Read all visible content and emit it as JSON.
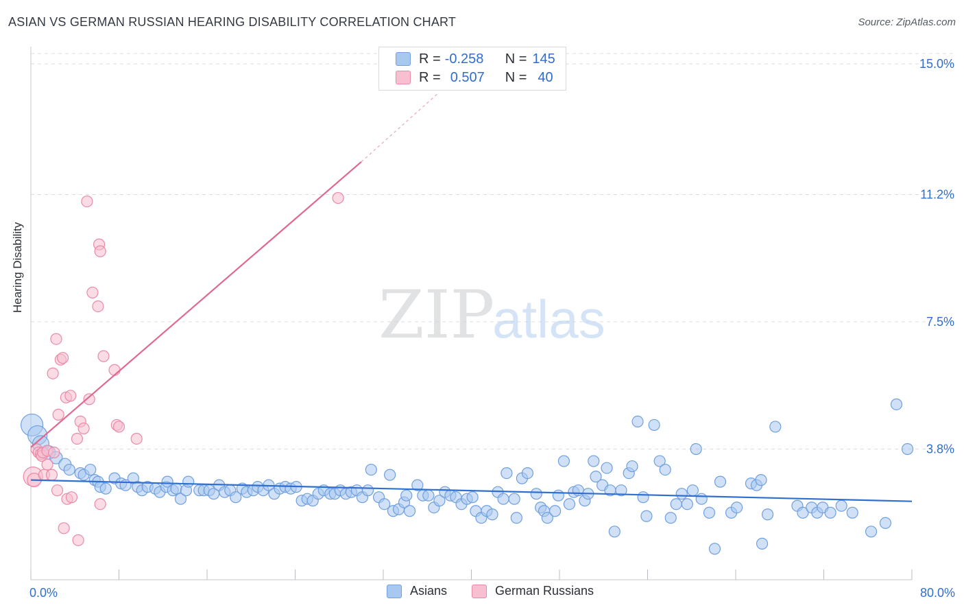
{
  "title": "ASIAN VS GERMAN RUSSIAN HEARING DISABILITY CORRELATION CHART",
  "source": "Source: ZipAtlas.com",
  "watermark": {
    "zip": "ZIP",
    "atlas": "atlas"
  },
  "legend": {
    "r_label": "R =",
    "n_label": "N =",
    "series": [
      {
        "name": "Asians",
        "r": "-0.258",
        "n": "145",
        "fill": "#a9c8f0",
        "stroke": "#6f9fde"
      },
      {
        "name": "German Russians",
        "r": "0.507",
        "n": "40",
        "fill": "#f7bfd0",
        "stroke": "#e98aa8"
      }
    ]
  },
  "chart_data": {
    "type": "scatter",
    "title": "ASIAN VS GERMAN RUSSIAN HEARING DISABILITY CORRELATION CHART",
    "xlabel": "",
    "ylabel": "Hearing Disability",
    "xlim": [
      0,
      80
    ],
    "ylim": [
      0,
      15.5
    ],
    "x_tick_labels": [
      "0.0%",
      "80.0%"
    ],
    "y_ticks": [
      3.8,
      7.5,
      11.2,
      15.0
    ],
    "y_tick_labels": [
      "3.8%",
      "7.5%",
      "11.2%",
      "15.0%"
    ],
    "grid": "horizontal dashed",
    "colors": {
      "asians_line": "#2e6fd1",
      "german_russians_line": "#e0688f",
      "tick_text": "#2f6ecf"
    },
    "series": [
      {
        "name": "Asians",
        "trend": {
          "x": [
            0,
            80
          ],
          "y": [
            2.9,
            2.28
          ]
        },
        "points": [
          [
            0.1,
            4.5,
            16
          ],
          [
            0.6,
            4.2,
            14
          ],
          [
            0.9,
            3.95,
            12
          ],
          [
            1.6,
            3.7,
            10
          ],
          [
            2.3,
            3.55,
            9
          ],
          [
            3.1,
            3.35,
            9
          ],
          [
            3.5,
            3.2,
            8
          ],
          [
            4.5,
            3.1,
            8
          ],
          [
            4.8,
            3.05,
            8
          ],
          [
            5.4,
            3.2,
            8
          ],
          [
            5.8,
            2.9,
            8
          ],
          [
            6.1,
            2.85,
            8
          ],
          [
            6.3,
            2.7,
            8
          ],
          [
            6.8,
            2.65,
            8
          ],
          [
            7.6,
            2.95,
            8
          ],
          [
            8.2,
            2.8,
            8
          ],
          [
            8.6,
            2.75,
            8
          ],
          [
            9.3,
            2.95,
            8
          ],
          [
            9.7,
            2.7,
            8
          ],
          [
            10.1,
            2.6,
            8
          ],
          [
            10.6,
            2.7,
            8
          ],
          [
            11.3,
            2.65,
            8
          ],
          [
            11.7,
            2.55,
            8
          ],
          [
            12.3,
            2.7,
            8
          ],
          [
            12.4,
            2.85,
            8
          ],
          [
            12.9,
            2.6,
            8
          ],
          [
            13.2,
            2.65,
            8
          ],
          [
            13.6,
            2.35,
            8
          ],
          [
            14.1,
            2.6,
            8
          ],
          [
            14.3,
            2.85,
            8
          ],
          [
            15.3,
            2.6,
            8
          ],
          [
            15.7,
            2.6,
            8
          ],
          [
            16.2,
            2.6,
            8
          ],
          [
            16.6,
            2.5,
            8
          ],
          [
            17.1,
            2.75,
            8
          ],
          [
            17.6,
            2.55,
            8
          ],
          [
            18.1,
            2.6,
            8
          ],
          [
            18.6,
            2.4,
            8
          ],
          [
            19.2,
            2.65,
            8
          ],
          [
            19.6,
            2.55,
            8
          ],
          [
            20.2,
            2.6,
            8
          ],
          [
            20.6,
            2.7,
            8
          ],
          [
            21.1,
            2.6,
            8
          ],
          [
            21.6,
            2.75,
            8
          ],
          [
            22.1,
            2.5,
            8
          ],
          [
            22.6,
            2.65,
            8
          ],
          [
            23.1,
            2.7,
            8
          ],
          [
            23.6,
            2.65,
            8
          ],
          [
            24.1,
            2.7,
            8
          ],
          [
            24.6,
            2.3,
            8
          ],
          [
            25.1,
            2.35,
            8
          ],
          [
            25.6,
            2.3,
            8
          ],
          [
            26.1,
            2.5,
            8
          ],
          [
            26.6,
            2.6,
            8
          ],
          [
            27.2,
            2.5,
            8
          ],
          [
            27.6,
            2.5,
            8
          ],
          [
            28.1,
            2.6,
            8
          ],
          [
            28.6,
            2.5,
            8
          ],
          [
            29.1,
            2.55,
            8
          ],
          [
            29.6,
            2.6,
            8
          ],
          [
            30.1,
            2.4,
            8
          ],
          [
            30.6,
            2.6,
            8
          ],
          [
            30.9,
            3.2,
            8
          ],
          [
            31.6,
            2.4,
            8
          ],
          [
            32.1,
            2.2,
            8
          ],
          [
            32.6,
            3.05,
            8
          ],
          [
            32.9,
            2.0,
            8
          ],
          [
            33.4,
            2.05,
            8
          ],
          [
            33.9,
            2.25,
            8
          ],
          [
            34.1,
            2.45,
            8
          ],
          [
            34.4,
            2.0,
            8
          ],
          [
            35.1,
            2.75,
            8
          ],
          [
            35.6,
            2.45,
            8
          ],
          [
            36.1,
            2.45,
            8
          ],
          [
            36.6,
            2.1,
            8
          ],
          [
            37.1,
            2.3,
            8
          ],
          [
            37.6,
            2.55,
            8
          ],
          [
            38.1,
            2.45,
            8
          ],
          [
            38.6,
            2.4,
            8
          ],
          [
            39.1,
            2.2,
            8
          ],
          [
            39.6,
            2.35,
            8
          ],
          [
            40.1,
            2.4,
            8
          ],
          [
            40.4,
            2.0,
            8
          ],
          [
            40.9,
            1.8,
            8
          ],
          [
            41.4,
            2.0,
            8
          ],
          [
            41.9,
            1.9,
            8
          ],
          [
            42.4,
            2.55,
            8
          ],
          [
            42.9,
            2.35,
            8
          ],
          [
            43.2,
            3.1,
            8
          ],
          [
            43.9,
            2.35,
            8
          ],
          [
            44.1,
            1.8,
            8
          ],
          [
            44.6,
            2.95,
            8
          ],
          [
            45.1,
            3.1,
            8
          ],
          [
            45.9,
            2.5,
            8
          ],
          [
            46.3,
            2.1,
            8
          ],
          [
            46.6,
            2.0,
            8
          ],
          [
            46.9,
            1.8,
            8
          ],
          [
            47.6,
            2.0,
            8
          ],
          [
            47.9,
            2.45,
            8
          ],
          [
            48.4,
            3.45,
            8
          ],
          [
            48.9,
            2.2,
            8
          ],
          [
            49.3,
            2.55,
            8
          ],
          [
            49.7,
            2.6,
            8
          ],
          [
            50.3,
            2.3,
            8
          ],
          [
            50.6,
            2.5,
            8
          ],
          [
            51.1,
            3.45,
            8
          ],
          [
            51.3,
            3.0,
            8
          ],
          [
            51.9,
            2.75,
            8
          ],
          [
            52.3,
            3.25,
            8
          ],
          [
            52.6,
            2.6,
            8
          ],
          [
            53.0,
            1.4,
            8
          ],
          [
            53.6,
            2.6,
            8
          ],
          [
            54.3,
            3.1,
            8
          ],
          [
            54.6,
            3.3,
            8
          ],
          [
            55.1,
            4.6,
            8
          ],
          [
            55.6,
            2.4,
            8
          ],
          [
            55.9,
            1.85,
            8
          ],
          [
            56.6,
            4.5,
            8
          ],
          [
            57.1,
            3.45,
            8
          ],
          [
            57.6,
            3.2,
            8
          ],
          [
            58.1,
            1.8,
            8
          ],
          [
            58.6,
            2.2,
            8
          ],
          [
            59.1,
            2.5,
            8
          ],
          [
            59.6,
            2.2,
            8
          ],
          [
            60.1,
            2.6,
            8
          ],
          [
            60.4,
            3.8,
            8
          ],
          [
            60.9,
            2.35,
            8
          ],
          [
            61.6,
            1.95,
            8
          ],
          [
            62.1,
            0.9,
            8
          ],
          [
            62.6,
            2.85,
            8
          ],
          [
            63.6,
            1.95,
            8
          ],
          [
            64.1,
            2.1,
            8
          ],
          [
            65.4,
            2.8,
            8
          ],
          [
            65.9,
            2.75,
            8
          ],
          [
            66.3,
            2.9,
            8
          ],
          [
            66.4,
            1.05,
            8
          ],
          [
            66.9,
            1.9,
            8
          ],
          [
            67.6,
            4.45,
            8
          ],
          [
            69.6,
            2.15,
            8
          ],
          [
            70.1,
            1.95,
            8
          ],
          [
            70.9,
            2.1,
            8
          ],
          [
            71.4,
            1.95,
            8
          ],
          [
            71.9,
            2.1,
            8
          ],
          [
            72.6,
            1.95,
            8
          ],
          [
            73.6,
            2.15,
            8
          ],
          [
            74.6,
            1.95,
            8
          ],
          [
            76.3,
            1.4,
            8
          ],
          [
            77.6,
            1.65,
            8
          ],
          [
            78.6,
            5.1,
            8
          ],
          [
            79.6,
            3.8,
            8
          ]
        ]
      },
      {
        "name": "German Russians",
        "trend": {
          "x": [
            0,
            30
          ],
          "y": [
            3.85,
            12.15
          ]
        },
        "trend_extension": {
          "x": [
            30,
            37
          ],
          "y": [
            12.15,
            14.15
          ]
        },
        "points": [
          [
            0.2,
            3.0,
            14
          ],
          [
            0.3,
            2.9,
            10
          ],
          [
            0.5,
            3.8,
            8
          ],
          [
            0.7,
            3.7,
            8
          ],
          [
            0.9,
            3.65,
            8
          ],
          [
            1.0,
            3.6,
            8
          ],
          [
            1.1,
            3.7,
            8
          ],
          [
            1.2,
            3.05,
            8
          ],
          [
            1.5,
            3.75,
            8
          ],
          [
            1.5,
            3.35,
            8
          ],
          [
            1.9,
            3.05,
            8
          ],
          [
            2.0,
            6.0,
            8
          ],
          [
            2.1,
            3.7,
            8
          ],
          [
            2.3,
            7.0,
            8
          ],
          [
            2.4,
            2.6,
            8
          ],
          [
            2.5,
            4.8,
            8
          ],
          [
            2.7,
            6.4,
            8
          ],
          [
            2.9,
            6.45,
            8
          ],
          [
            3.0,
            1.5,
            8
          ],
          [
            3.2,
            5.3,
            8
          ],
          [
            3.3,
            2.35,
            8
          ],
          [
            3.6,
            5.35,
            8
          ],
          [
            3.7,
            2.4,
            8
          ],
          [
            4.2,
            4.1,
            8
          ],
          [
            4.3,
            1.15,
            8
          ],
          [
            4.5,
            4.6,
            8
          ],
          [
            4.8,
            4.4,
            8
          ],
          [
            5.1,
            11.0,
            8
          ],
          [
            5.3,
            5.25,
            8
          ],
          [
            5.6,
            8.35,
            8
          ],
          [
            6.1,
            7.95,
            8
          ],
          [
            6.2,
            9.75,
            8
          ],
          [
            6.3,
            9.55,
            8
          ],
          [
            6.3,
            2.2,
            8
          ],
          [
            6.6,
            6.5,
            8
          ],
          [
            7.6,
            6.1,
            8
          ],
          [
            7.8,
            4.5,
            8
          ],
          [
            8.0,
            4.45,
            8
          ],
          [
            9.6,
            4.1,
            8
          ],
          [
            27.9,
            11.1,
            8
          ]
        ]
      }
    ]
  }
}
